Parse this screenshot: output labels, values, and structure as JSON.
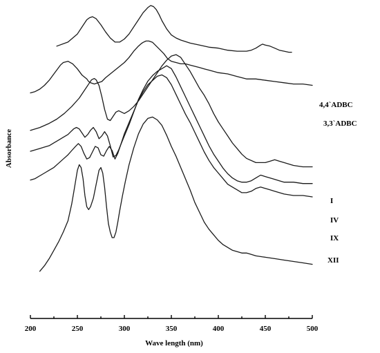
{
  "chart_data": {
    "type": "line",
    "title": "",
    "xlabel": "Wave length (nm)",
    "ylabel": "Absorbance",
    "xlim": [
      200,
      500
    ],
    "xticks": [
      "200",
      "250",
      "300",
      "350",
      "400",
      "450",
      "500"
    ],
    "grid": false,
    "legend": "labels at right end of each curve",
    "series": [
      {
        "name": "4,4`ADBC",
        "x": [
          228,
          240,
          250,
          255,
          260,
          263,
          266,
          270,
          275,
          280,
          285,
          290,
          295,
          300,
          305,
          310,
          315,
          320,
          325,
          328,
          331,
          334,
          337,
          340,
          345,
          350,
          355,
          360,
          370,
          380,
          390,
          400,
          410,
          420,
          430,
          435,
          440,
          445,
          447,
          450,
          455,
          460,
          465,
          470,
          475,
          478
        ],
        "y": [
          0.6,
          0.64,
          0.72,
          0.79,
          0.86,
          0.88,
          0.89,
          0.87,
          0.81,
          0.74,
          0.68,
          0.64,
          0.64,
          0.67,
          0.72,
          0.79,
          0.86,
          0.93,
          0.98,
          1.0,
          0.99,
          0.96,
          0.91,
          0.85,
          0.77,
          0.71,
          0.68,
          0.66,
          0.63,
          0.61,
          0.59,
          0.58,
          0.56,
          0.55,
          0.55,
          0.56,
          0.58,
          0.61,
          0.62,
          0.61,
          0.6,
          0.58,
          0.56,
          0.55,
          0.54,
          0.54
        ]
      },
      {
        "name": "3,3`ADBC",
        "x": [
          200,
          205,
          210,
          215,
          220,
          225,
          228,
          232,
          235,
          240,
          245,
          250,
          255,
          260,
          262,
          264,
          268,
          272,
          276,
          280,
          285,
          290,
          295,
          300,
          305,
          310,
          315,
          318,
          320,
          323,
          326,
          330,
          334,
          338,
          342,
          346,
          350,
          355,
          360,
          365,
          370,
          375,
          380,
          385,
          390,
          400,
          410,
          420,
          425,
          430,
          435,
          440,
          450,
          460,
          470,
          480,
          490,
          500
        ],
        "y": [
          0.85,
          0.86,
          0.88,
          0.91,
          0.95,
          1.0,
          1.03,
          1.07,
          1.09,
          1.1,
          1.08,
          1.04,
          0.99,
          0.96,
          0.94,
          0.93,
          0.92,
          0.93,
          0.94,
          0.97,
          1.0,
          1.03,
          1.06,
          1.09,
          1.13,
          1.18,
          1.22,
          1.24,
          1.25,
          1.26,
          1.26,
          1.25,
          1.22,
          1.19,
          1.16,
          1.12,
          1.1,
          1.09,
          1.08,
          1.08,
          1.07,
          1.06,
          1.05,
          1.04,
          1.03,
          1.01,
          1.0,
          0.98,
          0.97,
          0.96,
          0.96,
          0.96,
          0.95,
          0.94,
          0.93,
          0.92,
          0.92,
          0.91
        ]
      },
      {
        "name": "I",
        "x": [
          200,
          210,
          220,
          228,
          236,
          244,
          252,
          258,
          262,
          265,
          268,
          270,
          273,
          276,
          279,
          282,
          285,
          288,
          291,
          294,
          297,
          300,
          305,
          310,
          315,
          320,
          325,
          330,
          335,
          340,
          345,
          350,
          355,
          360,
          365,
          370,
          375,
          380,
          385,
          390,
          395,
          400,
          405,
          410,
          415,
          420,
          425,
          430,
          440,
          450,
          455,
          460,
          465,
          470,
          480,
          490,
          500
        ],
        "y": [
          1.1,
          1.12,
          1.15,
          1.18,
          1.22,
          1.27,
          1.33,
          1.39,
          1.43,
          1.46,
          1.47,
          1.46,
          1.42,
          1.34,
          1.25,
          1.18,
          1.17,
          1.2,
          1.23,
          1.24,
          1.23,
          1.22,
          1.24,
          1.27,
          1.31,
          1.36,
          1.41,
          1.46,
          1.51,
          1.56,
          1.6,
          1.63,
          1.64,
          1.62,
          1.57,
          1.52,
          1.46,
          1.4,
          1.35,
          1.29,
          1.22,
          1.16,
          1.11,
          1.06,
          1.01,
          0.97,
          0.93,
          0.9,
          0.87,
          0.87,
          0.88,
          0.89,
          0.88,
          0.87,
          0.85,
          0.84,
          0.84
        ]
      },
      {
        "name": "IV",
        "x": [
          200,
          205,
          210,
          215,
          220,
          225,
          230,
          235,
          240,
          243,
          246,
          249,
          252,
          255,
          258,
          261,
          264,
          267,
          270,
          273,
          276,
          279,
          282,
          285,
          288,
          291,
          294,
          297,
          300,
          305,
          310,
          315,
          320,
          325,
          330,
          335,
          340,
          345,
          350,
          355,
          360,
          365,
          370,
          375,
          380,
          385,
          390,
          395,
          400,
          405,
          410,
          415,
          420,
          425,
          430,
          435,
          440,
          445,
          450,
          455,
          460,
          465,
          470,
          480,
          490,
          500
        ],
        "y": [
          0.99,
          1.0,
          1.01,
          1.02,
          1.03,
          1.05,
          1.07,
          1.09,
          1.11,
          1.13,
          1.15,
          1.16,
          1.15,
          1.12,
          1.09,
          1.11,
          1.14,
          1.16,
          1.13,
          1.08,
          1.1,
          1.13,
          1.1,
          1.03,
          0.95,
          0.96,
          1.0,
          1.05,
          1.1,
          1.18,
          1.27,
          1.36,
          1.43,
          1.49,
          1.53,
          1.56,
          1.58,
          1.6,
          1.58,
          1.52,
          1.45,
          1.38,
          1.31,
          1.24,
          1.17,
          1.1,
          1.03,
          0.97,
          0.92,
          0.87,
          0.83,
          0.8,
          0.78,
          0.77,
          0.77,
          0.78,
          0.8,
          0.82,
          0.81,
          0.8,
          0.79,
          0.78,
          0.77,
          0.77,
          0.76,
          0.76
        ]
      },
      {
        "name": "IX",
        "x": [
          200,
          205,
          210,
          215,
          220,
          225,
          230,
          235,
          240,
          244,
          248,
          251,
          254,
          257,
          260,
          263,
          266,
          269,
          272,
          275,
          278,
          281,
          284,
          287,
          290,
          293,
          296,
          300,
          305,
          310,
          315,
          320,
          325,
          330,
          335,
          340,
          345,
          350,
          355,
          360,
          365,
          370,
          375,
          380,
          385,
          390,
          395,
          400,
          405,
          410,
          415,
          420,
          425,
          430,
          435,
          440,
          445,
          450,
          455,
          460,
          465,
          470,
          480,
          490,
          500
        ],
        "y": [
          0.79,
          0.8,
          0.82,
          0.84,
          0.86,
          0.88,
          0.91,
          0.94,
          0.97,
          1.0,
          1.03,
          1.05,
          1.03,
          0.98,
          0.94,
          0.95,
          0.99,
          1.03,
          1.02,
          0.97,
          0.96,
          1.0,
          1.03,
          1.0,
          0.94,
          0.98,
          1.04,
          1.12,
          1.2,
          1.28,
          1.36,
          1.42,
          1.47,
          1.5,
          1.53,
          1.54,
          1.52,
          1.47,
          1.4,
          1.33,
          1.26,
          1.2,
          1.13,
          1.06,
          0.99,
          0.93,
          0.88,
          0.84,
          0.8,
          0.76,
          0.74,
          0.72,
          0.7,
          0.7,
          0.71,
          0.73,
          0.74,
          0.73,
          0.72,
          0.71,
          0.7,
          0.69,
          0.68,
          0.68,
          0.67
        ]
      },
      {
        "name": "XII",
        "x": [
          210,
          215,
          220,
          225,
          230,
          235,
          240,
          244,
          246,
          248,
          250,
          252,
          254,
          256,
          258,
          260,
          262,
          264,
          267,
          270,
          273,
          275,
          277,
          279,
          281,
          283,
          285,
          287,
          289,
          291,
          293,
          295,
          298,
          301,
          305,
          310,
          315,
          320,
          325,
          330,
          335,
          340,
          345,
          350,
          355,
          360,
          365,
          370,
          375,
          380,
          385,
          390,
          395,
          400,
          405,
          410,
          415,
          420,
          425,
          430,
          435,
          440,
          450,
          460,
          470,
          480,
          490,
          500
        ],
        "y": [
          0.1,
          0.14,
          0.19,
          0.25,
          0.31,
          0.38,
          0.46,
          0.58,
          0.66,
          0.74,
          0.82,
          0.86,
          0.84,
          0.76,
          0.64,
          0.56,
          0.54,
          0.56,
          0.62,
          0.72,
          0.82,
          0.84,
          0.8,
          0.7,
          0.56,
          0.44,
          0.38,
          0.34,
          0.34,
          0.38,
          0.45,
          0.53,
          0.64,
          0.74,
          0.86,
          0.98,
          1.08,
          1.15,
          1.19,
          1.2,
          1.18,
          1.14,
          1.07,
          0.99,
          0.92,
          0.84,
          0.76,
          0.68,
          0.59,
          0.52,
          0.45,
          0.4,
          0.36,
          0.32,
          0.29,
          0.27,
          0.25,
          0.24,
          0.23,
          0.23,
          0.22,
          0.21,
          0.2,
          0.19,
          0.18,
          0.17,
          0.16,
          0.15
        ]
      }
    ]
  }
}
